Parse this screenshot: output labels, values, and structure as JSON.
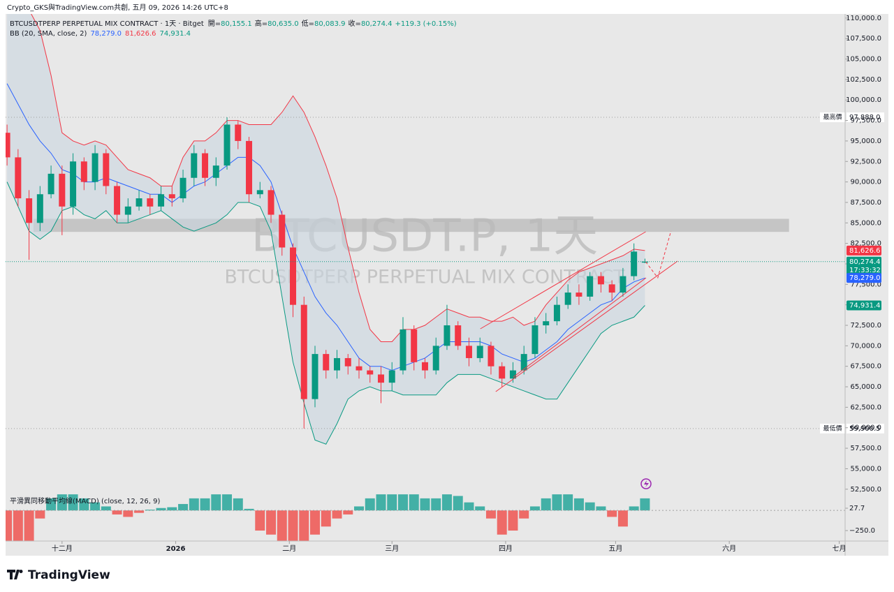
{
  "header": {
    "credit": "Crypto_GKS與TradingView.com共創, 五月 09, 2026 14:26 UTC+8"
  },
  "chart_data": {
    "type": "candlestick",
    "legend": {
      "symbol": "BTCUSDTPERP PERPETUAL MIX CONTRACT · 1天 · Bitget",
      "ohlc": [
        {
          "label": "開=",
          "value": "80,155.1"
        },
        {
          "label": "高=",
          "value": "80,635.0"
        },
        {
          "label": "低=",
          "value": "80,083.9"
        },
        {
          "label": "收=",
          "value": "80,274.4"
        }
      ],
      "change": "+119.3 (+0.15%)",
      "bb_label": "BB (20, SMA, close, 2)",
      "bb_middle": "78,279.0",
      "bb_upper": "81,626.6",
      "bb_lower": "74,931.4"
    },
    "watermark": {
      "line1": "BTCUSDT.P, 1天",
      "line2": "BTCUSDTPERP PERPETUAL MIX CONTRACT"
    },
    "x": [
      0,
      3,
      6,
      9,
      12,
      15,
      18,
      21,
      24,
      27,
      30,
      33,
      36,
      39,
      42,
      45,
      48,
      51,
      54,
      57,
      60,
      63,
      66,
      69,
      72,
      75,
      78,
      81,
      84,
      87,
      90,
      93,
      96,
      99,
      102,
      105,
      108,
      111,
      114,
      117,
      120,
      123,
      126,
      129,
      132,
      135,
      138,
      141,
      144,
      147,
      150,
      153,
      156,
      159,
      162,
      165,
      168,
      171,
      174
    ],
    "xlim": [
      -0.4,
      228.6
    ],
    "xticks": [
      {
        "value": 15,
        "label": "十二月"
      },
      {
        "value": 46,
        "label": "2026"
      },
      {
        "value": 77,
        "label": "二月"
      },
      {
        "value": 105,
        "label": "三月"
      },
      {
        "value": 136,
        "label": "四月"
      },
      {
        "value": 166,
        "label": "五月"
      },
      {
        "value": 197,
        "label": "六月"
      },
      {
        "value": 227,
        "label": "七月"
      }
    ],
    "open": [
      96000,
      93000,
      88000,
      85000,
      88500,
      91000,
      87000,
      92500,
      90000,
      93500,
      89500,
      86000,
      87000,
      88000,
      87000,
      88500,
      88000,
      90500,
      93500,
      90500,
      92000,
      97000,
      95000,
      88500,
      89000,
      86000,
      82000,
      75000,
      63500,
      69000,
      67000,
      68500,
      67500,
      67000,
      66500,
      65500,
      67000,
      72000,
      68000,
      67000,
      70000,
      72500,
      70000,
      68500,
      70000,
      67500,
      66000,
      67000,
      69000,
      72500,
      73000,
      75000,
      76500,
      76000,
      78500,
      77500,
      76500,
      78500,
      80155.1
    ],
    "high": [
      97000,
      94000,
      89000,
      89500,
      92000,
      92000,
      93500,
      93000,
      94500,
      94000,
      90000,
      88000,
      89000,
      88500,
      89500,
      89500,
      91500,
      94500,
      94000,
      93000,
      97888,
      97500,
      95500,
      90000,
      89500,
      86500,
      82500,
      76000,
      70000,
      69500,
      69500,
      69000,
      68500,
      67500,
      67500,
      68000,
      73500,
      72500,
      68500,
      71000,
      75000,
      73000,
      71000,
      71000,
      70500,
      68000,
      68000,
      70000,
      73500,
      74000,
      76000,
      77500,
      77500,
      79000,
      79000,
      78000,
      79500,
      82500,
      80635.0
    ],
    "low": [
      92000,
      87000,
      80500,
      84000,
      88000,
      83500,
      86000,
      89000,
      89000,
      88500,
      85000,
      85000,
      86500,
      86000,
      86500,
      87000,
      87500,
      89500,
      89500,
      89500,
      91500,
      94000,
      87500,
      88000,
      85000,
      81000,
      73500,
      59900.5,
      62500,
      66000,
      66000,
      66500,
      66000,
      65500,
      63000,
      64500,
      66500,
      67000,
      66000,
      66500,
      69500,
      69500,
      67500,
      68000,
      66500,
      65000,
      65500,
      66500,
      68500,
      71500,
      72500,
      74500,
      75000,
      75500,
      76500,
      75500,
      76000,
      78000,
      80083.9
    ],
    "close": [
      93000,
      88000,
      85000,
      88500,
      91000,
      87000,
      92500,
      90000,
      93500,
      89500,
      86000,
      87000,
      88000,
      87000,
      88500,
      88000,
      90500,
      93500,
      90500,
      92000,
      97000,
      95000,
      88500,
      89000,
      86000,
      82000,
      75000,
      63500,
      69000,
      67000,
      68500,
      67500,
      67000,
      66500,
      65500,
      67000,
      72000,
      68000,
      67000,
      70000,
      72500,
      70000,
      68500,
      70000,
      67500,
      66000,
      67000,
      69000,
      72500,
      73000,
      75000,
      76500,
      76000,
      78500,
      77500,
      76500,
      78500,
      81500,
      80274.4
    ],
    "up_color": "#089981",
    "down_color": "#f23645",
    "ylim": [
      46600,
      110500
    ],
    "yticks": [
      {
        "value": 52500,
        "label": "52,500.0"
      },
      {
        "value": 55000,
        "label": "55,000.0"
      },
      {
        "value": 57500,
        "label": "57,500.0"
      },
      {
        "value": 60000,
        "label": "60,000.0"
      },
      {
        "value": 62500,
        "label": "62,500.0"
      },
      {
        "value": 65000,
        "label": "65,000.0"
      },
      {
        "value": 67500,
        "label": "67,500.0"
      },
      {
        "value": 70000,
        "label": "70,000.0"
      },
      {
        "value": 72500,
        "label": "72,500.0"
      },
      {
        "value": 75000,
        "label": "75,000.0"
      },
      {
        "value": 77500,
        "label": "77,500.0"
      },
      {
        "value": 80000,
        "label": "80,000.0"
      },
      {
        "value": 82500,
        "label": "82,500.0"
      },
      {
        "value": 85000,
        "label": "85,000.0"
      },
      {
        "value": 87500,
        "label": "87,500.0"
      },
      {
        "value": 90000,
        "label": "90,000.0"
      },
      {
        "value": 92500,
        "label": "92,500.0"
      },
      {
        "value": 95000,
        "label": "95,000.0"
      },
      {
        "value": 97500,
        "label": "97,500.0"
      },
      {
        "value": 100000,
        "label": "100,000.0"
      },
      {
        "value": 102500,
        "label": "102,500.0"
      },
      {
        "value": 105000,
        "label": "105,000.0"
      },
      {
        "value": 107500,
        "label": "107,500.0"
      },
      {
        "value": 110000,
        "label": "110,000.0"
      }
    ],
    "bb": {
      "upper": [
        114000,
        112500,
        111000,
        108500,
        103000,
        96000,
        95000,
        94500,
        95000,
        94500,
        93000,
        91500,
        91000,
        90500,
        89500,
        89500,
        93000,
        95000,
        95000,
        96000,
        97500,
        97500,
        97000,
        97000,
        97000,
        98500,
        100500,
        98500,
        95500,
        92000,
        88000,
        82000,
        76500,
        72000,
        70500,
        70500,
        72000,
        72000,
        72500,
        73500,
        74500,
        74000,
        73500,
        73500,
        73000,
        73000,
        73500,
        72500,
        73000,
        75000,
        76500,
        78000,
        79000,
        79500,
        80000,
        80500,
        81000,
        81800,
        81626.6
      ],
      "middle": [
        102000,
        99500,
        97000,
        95000,
        93500,
        91500,
        91000,
        90000,
        90000,
        90500,
        90000,
        89500,
        89000,
        88500,
        88500,
        87500,
        88500,
        89500,
        90000,
        91000,
        92000,
        93000,
        93000,
        92000,
        90000,
        86000,
        82000,
        79000,
        76000,
        74000,
        72500,
        70500,
        68500,
        67500,
        67500,
        67000,
        67500,
        68000,
        68500,
        69500,
        70500,
        70500,
        70500,
        70500,
        70000,
        69000,
        68500,
        68000,
        68500,
        69500,
        70500,
        72000,
        73000,
        74000,
        75000,
        75500,
        77000,
        77800,
        78279.0
      ],
      "lower": [
        90000,
        87000,
        84000,
        83000,
        84000,
        86500,
        87000,
        86000,
        85500,
        86500,
        85000,
        85000,
        85500,
        86000,
        86500,
        85500,
        84500,
        84000,
        84500,
        85000,
        86000,
        87500,
        87500,
        87000,
        84000,
        76000,
        68000,
        63000,
        58500,
        58000,
        60500,
        63500,
        64500,
        65000,
        64500,
        64500,
        64000,
        64000,
        64000,
        64000,
        65500,
        66500,
        66500,
        66500,
        66000,
        65500,
        65000,
        64500,
        64000,
        63500,
        63500,
        65500,
        67500,
        69500,
        71500,
        72500,
        73000,
        73500,
        74931.4
      ],
      "upper_color": "#f23645",
      "middle_color": "#2962ff",
      "lower_color": "#089981",
      "fill_color": "#c9d6df"
    },
    "extremes": [
      {
        "label": "最高價",
        "value": 97888,
        "value_label": "97,888.0"
      },
      {
        "label": "最低價",
        "value": 59900.5,
        "value_label": "59,900.5"
      }
    ],
    "price_tags": [
      {
        "value": 81626.6,
        "label": "81,626.6",
        "color": "#f23645"
      },
      {
        "value": 80274.4,
        "label": "80,274.4",
        "sub": "17:33:32",
        "color": "#089981"
      },
      {
        "value": 78279.0,
        "label": "78,279.0",
        "color": "#2962ff"
      },
      {
        "value": 74931.4,
        "label": "74,931.4",
        "color": "#089981"
      }
    ],
    "zone": {
      "low": 83900,
      "high": 85500,
      "start": 7.2,
      "end": 213.3,
      "color": "#b9b9b9"
    },
    "trendlines": [
      {
        "points": [
          [
            129.1,
            72075
          ],
          [
            174.2,
            83918
          ]
        ],
        "color": "#f23645",
        "dashed": false
      },
      {
        "points": [
          [
            133.3,
            64407
          ],
          [
            182.9,
            80339
          ]
        ],
        "color": "#f23645",
        "dashed": false
      },
      {
        "points": [
          [
            138.1,
            66196
          ],
          [
            174.3,
            78294
          ]
        ],
        "color": "#f23645",
        "dashed": false
      },
      {
        "points": [
          [
            174.2,
            80250
          ],
          [
            177.5,
            78300
          ],
          [
            181.1,
            84000
          ]
        ],
        "color": "#f23645",
        "dashed": true
      }
    ],
    "macd": {
      "label": "平滑異同移動平均線(MACD) (close, 12, 26, 9)",
      "values": [
        -400,
        -400,
        -380,
        -100,
        150,
        200,
        200,
        150,
        100,
        50,
        -50,
        -80,
        -30,
        10,
        30,
        40,
        80,
        150,
        150,
        200,
        200,
        150,
        20,
        -250,
        -300,
        -380,
        -380,
        -380,
        -300,
        -200,
        -100,
        -50,
        50,
        150,
        200,
        200,
        200,
        200,
        150,
        150,
        200,
        180,
        100,
        50,
        -100,
        -300,
        -250,
        -100,
        50,
        150,
        200,
        200,
        150,
        100,
        50,
        -80,
        -200,
        50,
        150
      ],
      "ylim": [
        -380,
        227
      ],
      "yticks": [
        {
          "value": -250,
          "label": "−250.0"
        },
        27.7
      ],
      "pos_color": "#26a69a",
      "neg_color": "#ef5350"
    }
  },
  "footer": {
    "brand": "TradingView"
  }
}
